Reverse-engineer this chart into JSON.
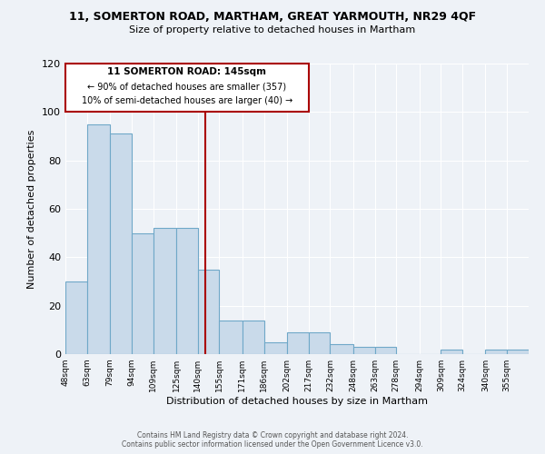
{
  "title_main": "11, SOMERTON ROAD, MARTHAM, GREAT YARMOUTH, NR29 4QF",
  "title_sub": "Size of property relative to detached houses in Martham",
  "xlabel": "Distribution of detached houses by size in Martham",
  "ylabel": "Number of detached properties",
  "bin_labels": [
    "48sqm",
    "63sqm",
    "79sqm",
    "94sqm",
    "109sqm",
    "125sqm",
    "140sqm",
    "155sqm",
    "171sqm",
    "186sqm",
    "202sqm",
    "217sqm",
    "232sqm",
    "248sqm",
    "263sqm",
    "278sqm",
    "294sqm",
    "309sqm",
    "324sqm",
    "340sqm",
    "355sqm"
  ],
  "bin_edges": [
    48,
    63,
    79,
    94,
    109,
    125,
    140,
    155,
    171,
    186,
    202,
    217,
    232,
    248,
    263,
    278,
    294,
    309,
    324,
    340,
    355,
    370
  ],
  "values": [
    30,
    95,
    91,
    50,
    52,
    52,
    35,
    14,
    14,
    5,
    9,
    9,
    4,
    3,
    3,
    0,
    0,
    2,
    0,
    2,
    2
  ],
  "bar_facecolor": "#c9daea",
  "bar_edgecolor": "#6fa8c8",
  "property_value": 145,
  "vline_color": "#aa0000",
  "box_line_color": "#aa0000",
  "annotation_line1": "11 SOMERTON ROAD: 145sqm",
  "annotation_line2": "← 90% of detached houses are smaller (357)",
  "annotation_line3": "10% of semi-detached houses are larger (40) →",
  "ylim": [
    0,
    120
  ],
  "yticks": [
    0,
    20,
    40,
    60,
    80,
    100,
    120
  ],
  "footer1": "Contains HM Land Registry data © Crown copyright and database right 2024.",
  "footer2": "Contains public sector information licensed under the Open Government Licence v3.0.",
  "background_color": "#eef2f7",
  "plot_bg_color": "#eef2f7",
  "grid_color": "#ffffff"
}
